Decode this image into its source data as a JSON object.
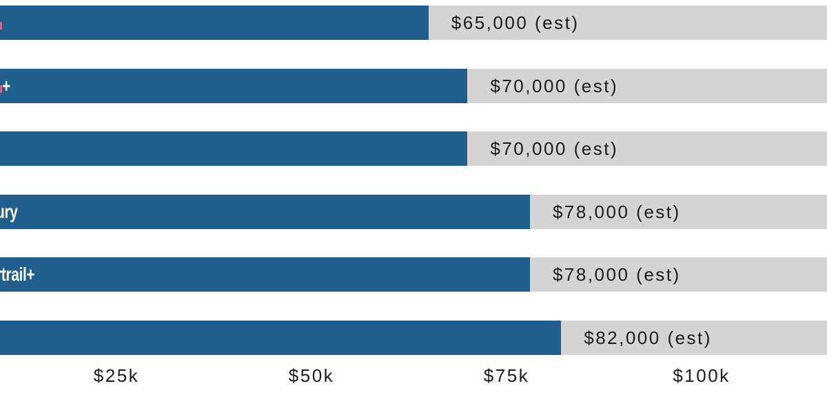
{
  "chart_data": {
    "type": "bar",
    "orientation": "horizontal",
    "title": "",
    "xlabel": "",
    "ylabel": "",
    "grid": false,
    "legend": false,
    "bars": [
      {
        "visible_label": "",
        "has_cut_glyph_sliver": true,
        "value": 65000,
        "value_label": "$65,000 (est)"
      },
      {
        "visible_label": "+",
        "has_cut_glyph_sliver": true,
        "value": 70000,
        "value_label": "$70,000 (est)"
      },
      {
        "visible_label": "",
        "has_cut_glyph_sliver": false,
        "value": 70000,
        "value_label": "$70,000 (est)"
      },
      {
        "visible_label": "ury",
        "has_cut_glyph_sliver": false,
        "value": 78000,
        "value_label": "$78,000 (est)"
      },
      {
        "visible_label": "rtrail+",
        "has_cut_glyph_sliver": false,
        "value": 78000,
        "value_label": "$78,000 (est)"
      },
      {
        "visible_label": "",
        "has_cut_glyph_sliver": false,
        "value": 82000,
        "value_label": "$82,000 (est)"
      }
    ],
    "x_ticks": [
      {
        "label": "$25k",
        "value": 25000
      },
      {
        "label": "$50k",
        "value": 50000
      },
      {
        "label": "$75k",
        "value": 75000
      },
      {
        "label": "$100k",
        "value": 100000
      }
    ],
    "colors": {
      "bar": "#205f8d",
      "track": "#d4d4d4",
      "value_text": "#1c1c1c",
      "axis_text": "#1c1c1c",
      "bar_label_text": "#ffffff",
      "cut_glyph_sliver": "#c9678f",
      "background": "#ffffff"
    }
  }
}
